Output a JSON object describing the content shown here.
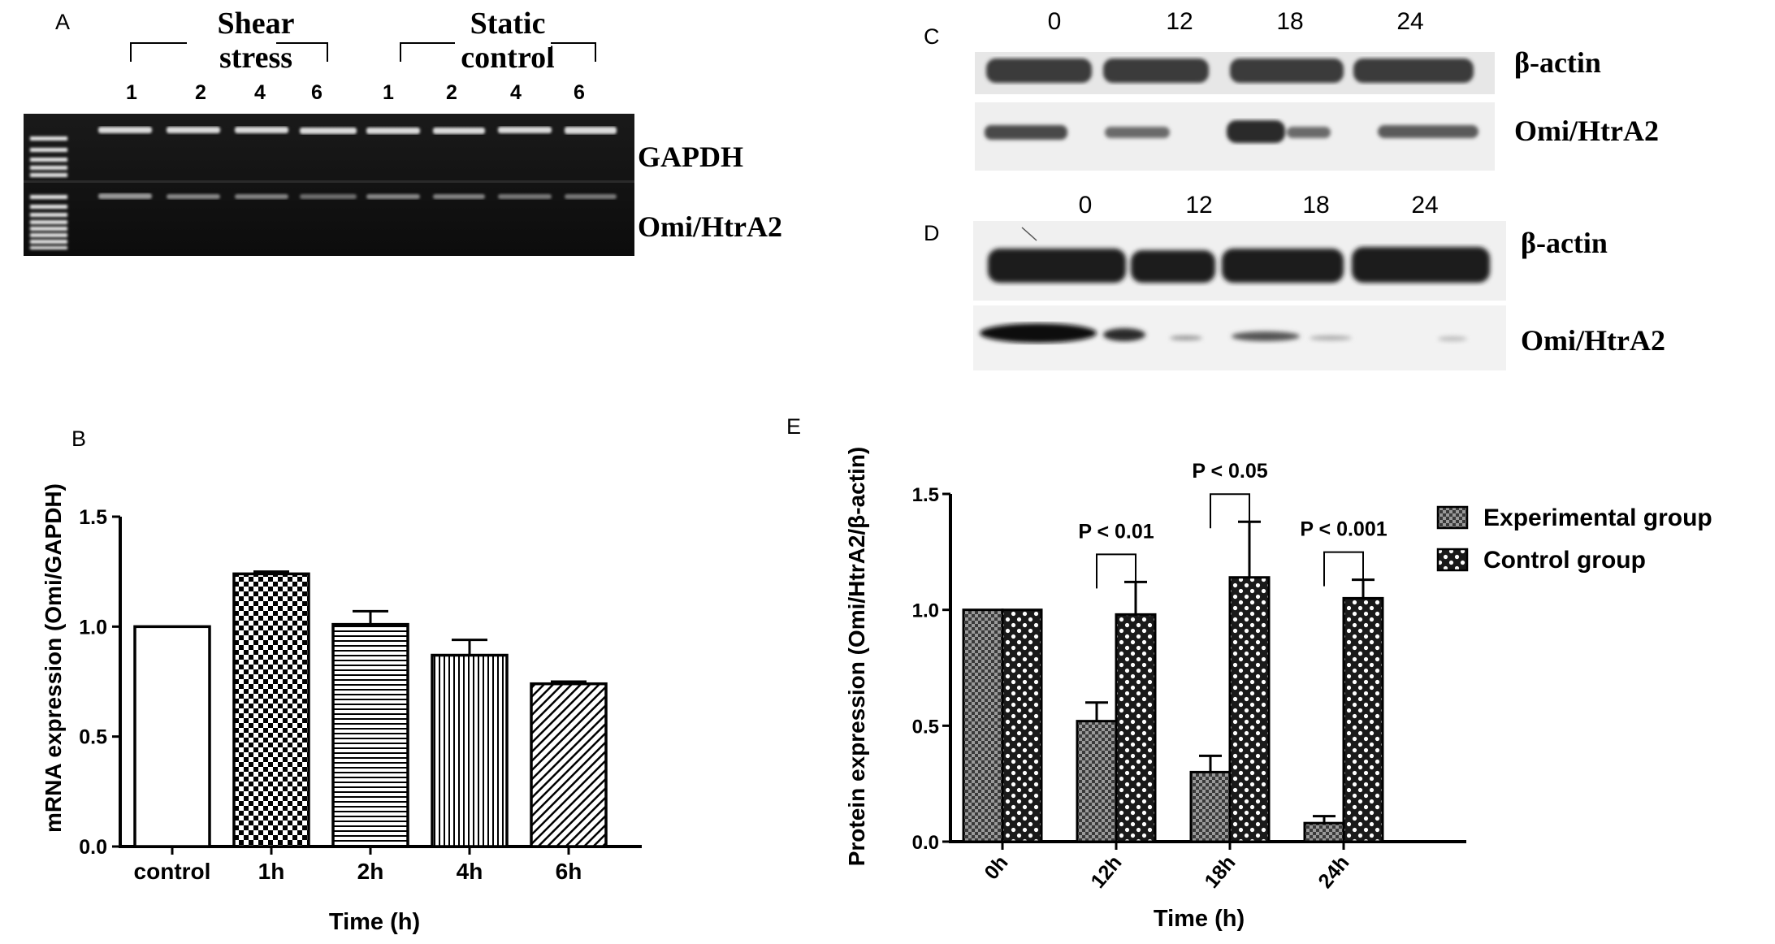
{
  "panels": {
    "A": {
      "letter": "A",
      "groups": [
        {
          "label_line1": "Shear",
          "label_line2": "stress",
          "lanes": [
            "1",
            "2",
            "4",
            "6"
          ]
        },
        {
          "label_line1": "Static",
          "label_line2": "control",
          "lanes": [
            "1",
            "2",
            "4",
            "6"
          ]
        }
      ],
      "band_labels": [
        "GAPDH",
        "Omi/HtrA2"
      ]
    },
    "C": {
      "letter": "C",
      "timepoints": [
        "0",
        "12",
        "18",
        "24"
      ],
      "band_labels": [
        "β-actin",
        "Omi/HtrA2"
      ]
    },
    "D": {
      "letter": "D",
      "timepoints": [
        "0",
        "12",
        "18",
        "24"
      ],
      "band_labels": [
        "β-actin",
        "Omi/HtrA2"
      ]
    },
    "B_letter": "B",
    "E_letter": "E"
  },
  "chart_data": [
    {
      "panel": "B",
      "type": "bar",
      "xlabel": "Time (h)",
      "ylabel": "mRNA expression (Omi/GAPDH)",
      "ylim": [
        0,
        1.5
      ],
      "yticks": [
        "0.0",
        "0.5",
        "1.0",
        "1.5"
      ],
      "categories": [
        "control",
        "1h",
        "2h",
        "4h",
        "6h"
      ],
      "values": [
        1.0,
        1.24,
        1.01,
        0.87,
        0.74
      ],
      "errors": [
        0,
        0.01,
        0.06,
        0.07,
        0.01
      ],
      "patterns": [
        "none",
        "checker",
        "horizontal-lines",
        "vertical-lines",
        "diagonal-lines"
      ]
    },
    {
      "panel": "E",
      "type": "bar",
      "xlabel": "Time (h)",
      "ylabel": "Protein expression (Omi/HtrA2/β-actin)",
      "ylim": [
        0,
        1.5
      ],
      "yticks": [
        "0.0",
        "0.5",
        "1.0",
        "1.5"
      ],
      "categories": [
        "0h",
        "12h",
        "18h",
        "24h"
      ],
      "series": [
        {
          "name": "Experimental group",
          "values": [
            1.0,
            0.52,
            0.3,
            0.08
          ],
          "errors": [
            0,
            0.08,
            0.07,
            0.03
          ],
          "pattern": "dense-checker"
        },
        {
          "name": "Control group",
          "values": [
            1.0,
            0.98,
            1.14,
            1.05
          ],
          "errors": [
            0,
            0.14,
            0.24,
            0.08
          ],
          "pattern": "coarse-checker"
        }
      ],
      "significance": [
        {
          "category": "12h",
          "label": "P < 0.01"
        },
        {
          "category": "18h",
          "label": "P < 0.05"
        },
        {
          "category": "24h",
          "label": "P < 0.001"
        }
      ],
      "legend_placement": "right"
    }
  ]
}
